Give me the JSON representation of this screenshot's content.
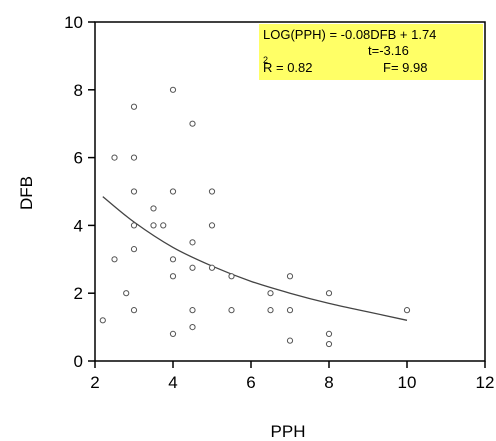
{
  "chart_data": {
    "type": "scatter",
    "title": "",
    "xlabel": "PPH",
    "ylabel": "DFB",
    "xlim": [
      2,
      12
    ],
    "ylim": [
      0,
      10
    ],
    "x_ticks": [
      2,
      4,
      6,
      8,
      10,
      12
    ],
    "y_ticks": [
      0,
      2,
      4,
      6,
      8,
      10
    ],
    "grid": false,
    "legend": "none",
    "marker_color": "#555555",
    "curve_color": "#444444",
    "annotation_bg": "#ffff66",
    "points": [
      {
        "x": 2.2,
        "y": 1.2
      },
      {
        "x": 2.5,
        "y": 3.0
      },
      {
        "x": 2.5,
        "y": 6.0
      },
      {
        "x": 2.8,
        "y": 2.0
      },
      {
        "x": 3.0,
        "y": 7.5
      },
      {
        "x": 3.0,
        "y": 6.0
      },
      {
        "x": 3.0,
        "y": 5.0
      },
      {
        "x": 3.0,
        "y": 4.0
      },
      {
        "x": 3.0,
        "y": 3.3
      },
      {
        "x": 3.0,
        "y": 1.5
      },
      {
        "x": 3.5,
        "y": 4.5
      },
      {
        "x": 3.5,
        "y": 4.0
      },
      {
        "x": 3.75,
        "y": 4.0
      },
      {
        "x": 4.0,
        "y": 8.0
      },
      {
        "x": 4.0,
        "y": 5.0
      },
      {
        "x": 4.0,
        "y": 3.0
      },
      {
        "x": 4.0,
        "y": 2.5
      },
      {
        "x": 4.0,
        "y": 0.8
      },
      {
        "x": 4.5,
        "y": 7.0
      },
      {
        "x": 4.5,
        "y": 3.5
      },
      {
        "x": 4.5,
        "y": 2.75
      },
      {
        "x": 4.5,
        "y": 1.5
      },
      {
        "x": 4.5,
        "y": 1.0
      },
      {
        "x": 5.0,
        "y": 5.0
      },
      {
        "x": 5.0,
        "y": 4.0
      },
      {
        "x": 5.0,
        "y": 2.75
      },
      {
        "x": 5.5,
        "y": 2.5
      },
      {
        "x": 5.5,
        "y": 1.5
      },
      {
        "x": 6.5,
        "y": 2.0
      },
      {
        "x": 6.5,
        "y": 1.5
      },
      {
        "x": 7.0,
        "y": 2.5
      },
      {
        "x": 7.0,
        "y": 1.5
      },
      {
        "x": 7.0,
        "y": 0.6
      },
      {
        "x": 8.0,
        "y": 2.0
      },
      {
        "x": 8.0,
        "y": 0.8
      },
      {
        "x": 8.0,
        "y": 0.5
      },
      {
        "x": 10.0,
        "y": 1.5
      }
    ],
    "fit_curve": [
      {
        "x": 2.2,
        "y": 4.85
      },
      {
        "x": 3,
        "y": 4.1
      },
      {
        "x": 4,
        "y": 3.35
      },
      {
        "x": 5,
        "y": 2.8
      },
      {
        "x": 6,
        "y": 2.35
      },
      {
        "x": 7,
        "y": 2.0
      },
      {
        "x": 8,
        "y": 1.7
      },
      {
        "x": 9,
        "y": 1.45
      },
      {
        "x": 10,
        "y": 1.2
      }
    ],
    "annotation": {
      "line1": "LOG(PPH) = -0.08DFB + 1.74",
      "line2": "t=-3.16",
      "line3_left": "R = 0.82",
      "line3_sup": "2",
      "line3_right": "F= 9.98"
    }
  }
}
